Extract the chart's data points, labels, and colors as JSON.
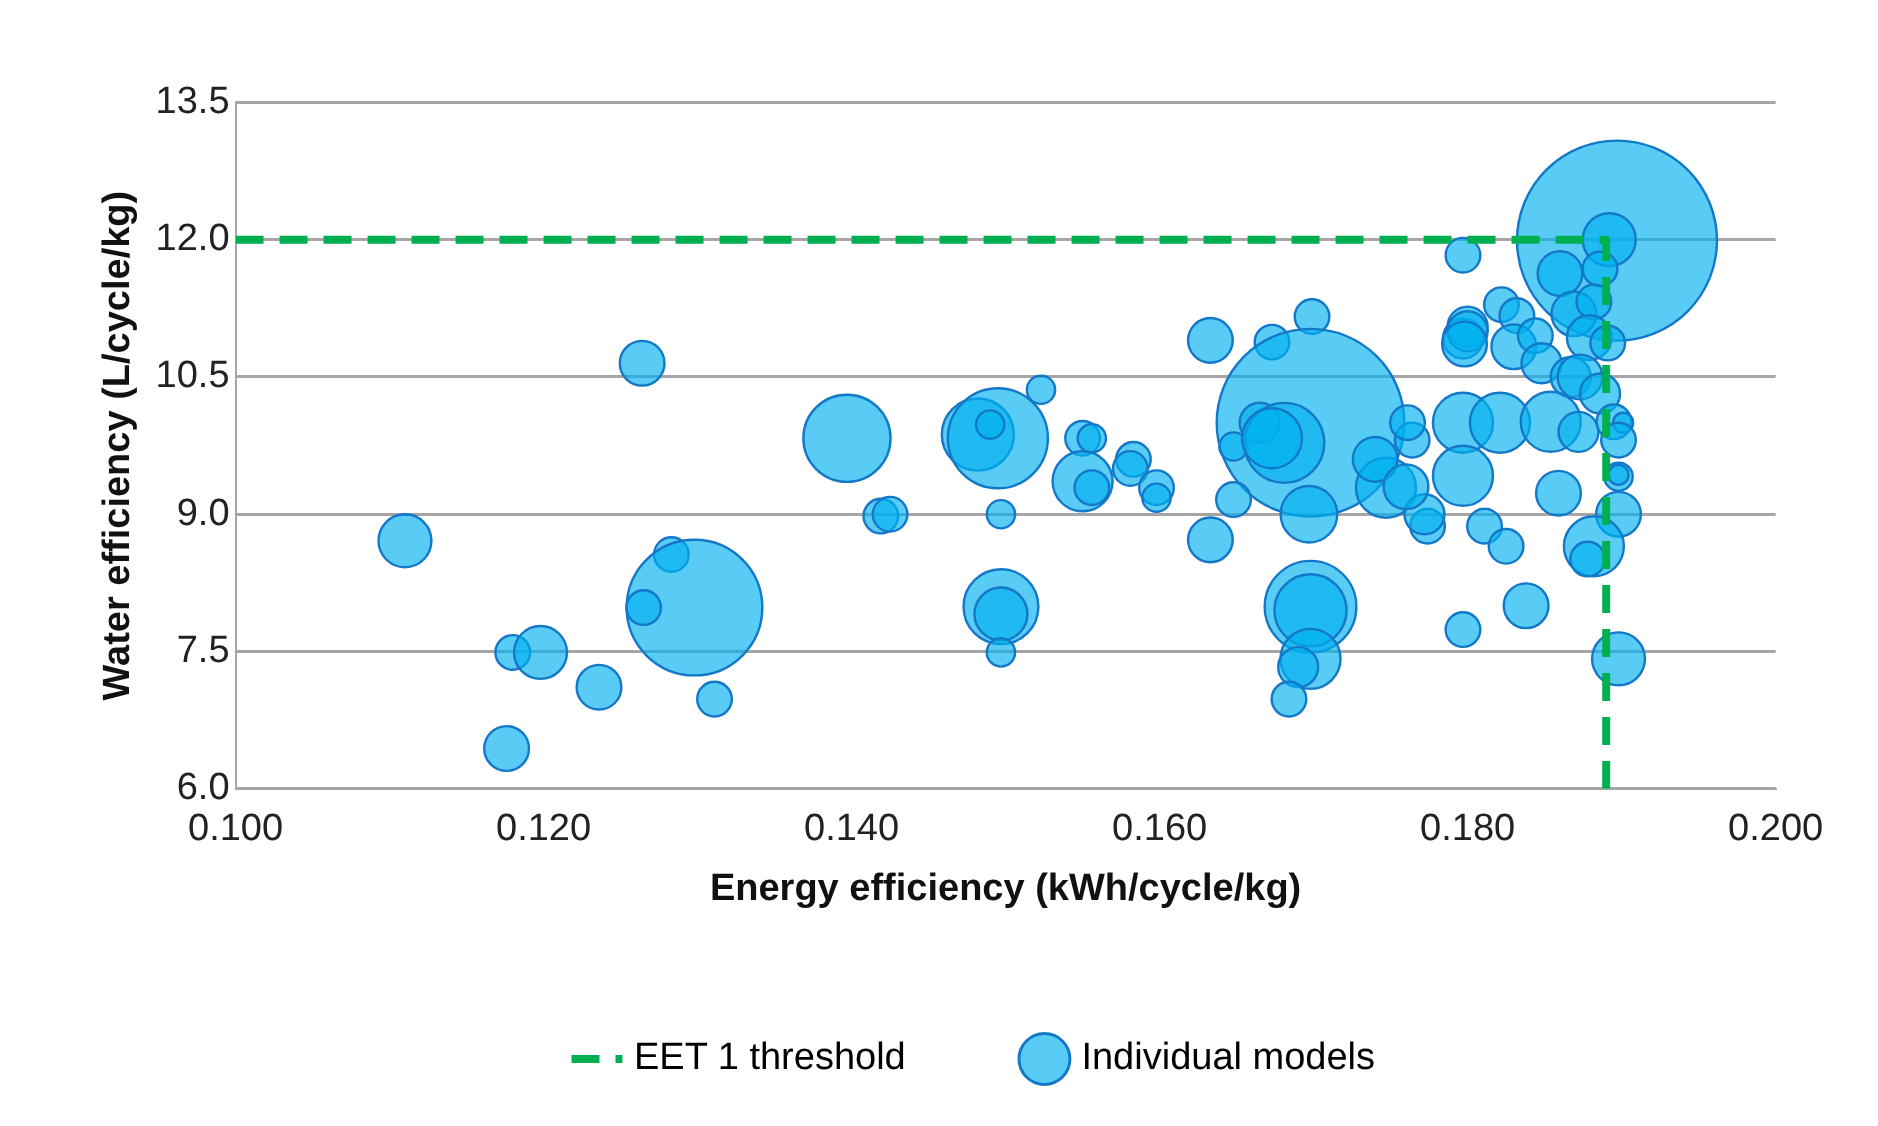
{
  "chart_data": {
    "type": "bubble",
    "xlabel": "Energy efficiency (kWh/cycle/kg)",
    "ylabel": "Water efficiency (L/cycle/kg)",
    "xlim": [
      0.1,
      0.2
    ],
    "xticks": [
      {
        "value": 0.1,
        "label": "0.100"
      },
      {
        "value": 0.12,
        "label": "0.120"
      },
      {
        "value": 0.14,
        "label": "0.140"
      },
      {
        "value": 0.16,
        "label": "0.160"
      },
      {
        "value": 0.18,
        "label": "0.180"
      },
      {
        "value": 0.2,
        "label": "0.200"
      }
    ],
    "ylim": [
      6,
      13.5
    ],
    "yticks": [
      {
        "value": 6,
        "label": "6.0"
      },
      {
        "value": 7.5,
        "label": "7.5"
      },
      {
        "value": 9,
        "label": "9.0"
      },
      {
        "value": 10.5,
        "label": "10.5"
      },
      {
        "value": 12,
        "label": "12.0"
      },
      {
        "value": 13.5,
        "label": "13.5"
      }
    ],
    "grid": "y",
    "legend": "bottom",
    "series": [
      {
        "type": "line",
        "name": "EET 1 threshold",
        "color": "#00b050",
        "line_style": "dashed",
        "marker": "none",
        "x": [
          0.1,
          0.189,
          0.189
        ],
        "values": [
          12,
          12,
          6
        ]
      },
      {
        "name": "Individual models",
        "color": "#00b0f0",
        "x": [
          0.1264,
          0.1397,
          0.1482,
          0.1495,
          0.149,
          0.1419,
          0.1425,
          0.1497,
          0.111,
          0.1283,
          0.1298,
          0.1265,
          0.1497,
          0.1497,
          0.1497,
          0.118,
          0.1198,
          0.1236,
          0.1311,
          0.1176,
          0.1523,
          0.155,
          0.1556,
          0.155,
          0.1556,
          0.1583,
          0.1581,
          0.1598,
          0.1598,
          0.1633,
          0.1673,
          0.1699,
          0.1698,
          0.1665,
          0.1648,
          0.1681,
          0.1673,
          0.1648,
          0.1697,
          0.1633,
          0.1698,
          0.1698,
          0.1698,
          0.169,
          0.1684,
          0.1797,
          0.1747,
          0.1774,
          0.1772,
          0.1764,
          0.1761,
          0.1797,
          0.1797,
          0.1797,
          0.18,
          0.1897,
          0.1892,
          0.1797,
          0.186,
          0.1886,
          0.1822,
          0.1832,
          0.18,
          0.1798,
          0.183,
          0.1844,
          0.1869,
          0.1882,
          0.1879,
          0.1891,
          0.1848,
          0.1867,
          0.1873,
          0.1886,
          0.1821,
          0.1854,
          0.1872,
          0.1895,
          0.1901,
          0.1898,
          0.1898,
          0.1811,
          0.1825,
          0.1859,
          0.1898,
          0.1898,
          0.1882,
          0.1878,
          0.1838,
          0.1898,
          0.174,
          0.176
        ],
        "values": [
          10.65,
          9.83,
          9.87,
          9.83,
          9.98,
          8.98,
          9.0,
          9.0,
          8.71,
          8.56,
          7.98,
          7.98,
          7.99,
          7.91,
          7.49,
          7.49,
          7.49,
          7.11,
          6.98,
          6.44,
          10.36,
          9.83,
          9.83,
          9.36,
          9.29,
          9.6,
          9.5,
          9.29,
          9.18,
          10.9,
          10.88,
          11.16,
          10.0,
          10.0,
          9.74,
          9.78,
          9.83,
          9.16,
          9.0,
          8.72,
          7.99,
          7.95,
          7.42,
          7.33,
          6.98,
          7.74,
          9.29,
          8.87,
          9.0,
          9.81,
          10.0,
          10.0,
          9.42,
          10.92,
          11.05,
          11.99,
          12.0,
          11.83,
          11.63,
          11.68,
          11.29,
          11.17,
          11.0,
          10.86,
          10.83,
          10.95,
          11.19,
          11.32,
          10.93,
          10.87,
          10.65,
          10.5,
          10.5,
          10.32,
          10.0,
          10.01,
          9.9,
          10.01,
          10.0,
          9.81,
          9.41,
          8.87,
          8.65,
          9.23,
          9.43,
          9.0,
          8.65,
          8.51,
          8.0,
          7.42,
          9.6,
          9.3
        ],
        "sizes": [
          0.05,
          0.19,
          0.13,
          0.25,
          0.02,
          0.03,
          0.03,
          0.02,
          0.07,
          0.03,
          0.46,
          0.03,
          0.14,
          0.07,
          0.02,
          0.03,
          0.07,
          0.05,
          0.03,
          0.05,
          0.02,
          0.03,
          0.02,
          0.09,
          0.03,
          0.03,
          0.03,
          0.03,
          0.02,
          0.05,
          0.03,
          0.03,
          0.88,
          0.04,
          0.02,
          0.16,
          0.09,
          0.03,
          0.08,
          0.05,
          0.21,
          0.13,
          0.09,
          0.04,
          0.03,
          0.03,
          0.09,
          0.03,
          0.04,
          0.03,
          0.03,
          0.09,
          0.09,
          0.04,
          0.04,
          1,
          0.07,
          0.03,
          0.05,
          0.03,
          0.03,
          0.03,
          0.04,
          0.05,
          0.05,
          0.03,
          0.05,
          0.03,
          0.05,
          0.03,
          0.04,
          0.04,
          0.05,
          0.04,
          0.09,
          0.09,
          0.04,
          0.03,
          0.01,
          0.03,
          0.02,
          0.03,
          0.03,
          0.05,
          0.01,
          0.05,
          0.09,
          0.03,
          0.05,
          0.07,
          0.05,
          0.05
        ]
      }
    ]
  }
}
